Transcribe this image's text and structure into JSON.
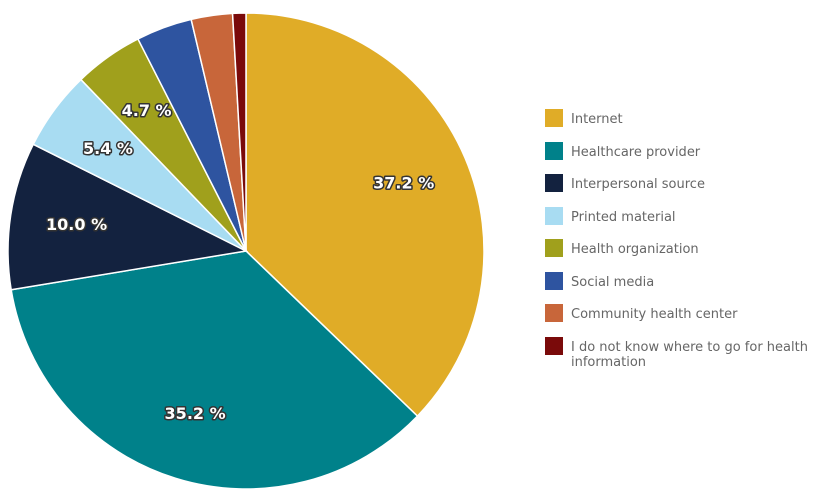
{
  "chart_data": {
    "type": "pie",
    "categories": [
      "Internet",
      "Healthcare provider",
      "Interpersonal source",
      "Printed material",
      "Health organization",
      "Social media",
      "Community health center",
      "I do not know where to go for health information"
    ],
    "values": [
      37.2,
      35.2,
      10.0,
      5.4,
      4.7,
      3.8,
      2.8,
      0.9
    ],
    "value_labels": [
      "37.2 %",
      "35.2 %",
      "10.0 %",
      "5.4 %",
      "4.7 %",
      null,
      null,
      null
    ],
    "colors": [
      "#e0ac27",
      "#00818a",
      "#13223f",
      "#a8dcf2",
      "#a0a01c",
      "#2e54a0",
      "#c8663a",
      "#7a0a0a"
    ],
    "legend": "right"
  }
}
